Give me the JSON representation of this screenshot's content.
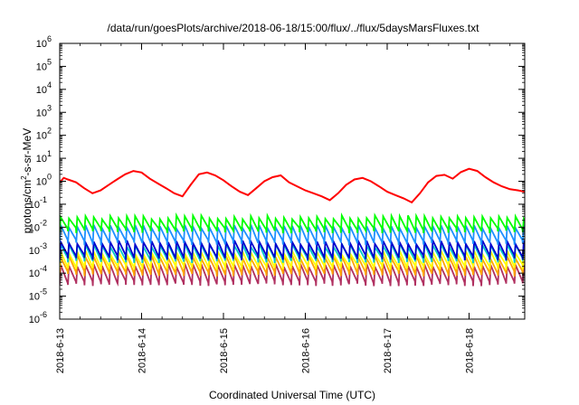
{
  "chart_data": {
    "type": "line",
    "title": "/data/run/goesPlots/archive/2018-06-18/15:00/flux/../flux/5daysMarsFluxes.txt",
    "xlabel": "Coordinated Universal Time (UTC)",
    "ylabel": "protons/cm²-s-sr-MeV",
    "ylabel_parts": {
      "pre": "protons/cm",
      "sup": "2",
      "post": "-s-sr-MeV"
    },
    "yscale": "log",
    "ylim_exp": [
      -6,
      6
    ],
    "y_tick_exponents": [
      6,
      5,
      4,
      3,
      2,
      1,
      0,
      -1,
      -2,
      -3,
      -4,
      -5,
      -6
    ],
    "x_range_days": [
      0,
      5.68
    ],
    "x_ticks": [
      {
        "label": "2018-6-13",
        "day": 0
      },
      {
        "label": "2018-6-14",
        "day": 1
      },
      {
        "label": "2018-6-15",
        "day": 2
      },
      {
        "label": "2018-6-16",
        "day": 3
      },
      {
        "label": "2018-6-17",
        "day": 4
      },
      {
        "label": "2018-6-18",
        "day": 5
      }
    ],
    "grid": false,
    "legend": "none",
    "series_colors": [
      "#ff0000",
      "#00ff00",
      "#1e90ff",
      "#0000cd",
      "#00c8c8",
      "#ffff00",
      "#ffa500",
      "#b03060"
    ],
    "series": [
      {
        "color": "#ff0000",
        "x": [
          0,
          0.05,
          0.1,
          0.2,
          0.3,
          0.4,
          0.5,
          0.6,
          0.7,
          0.8,
          0.9,
          1.0,
          1.1,
          1.2,
          1.3,
          1.4,
          1.5,
          1.6,
          1.7,
          1.8,
          1.9,
          2.0,
          2.1,
          2.2,
          2.3,
          2.4,
          2.5,
          2.6,
          2.7,
          2.8,
          2.9,
          3.0,
          3.1,
          3.2,
          3.3,
          3.4,
          3.5,
          3.6,
          3.7,
          3.8,
          3.9,
          4.0,
          4.1,
          4.2,
          4.3,
          4.4,
          4.5,
          4.6,
          4.7,
          4.8,
          4.9,
          5.0,
          5.1,
          5.2,
          5.3,
          5.4,
          5.5,
          5.6,
          5.68
        ],
        "y": [
          0.9,
          1.4,
          1.2,
          0.9,
          0.5,
          0.3,
          0.4,
          0.7,
          1.2,
          2.0,
          2.8,
          2.4,
          1.3,
          0.8,
          0.5,
          0.3,
          0.22,
          0.7,
          2.0,
          2.4,
          1.8,
          1.1,
          0.6,
          0.35,
          0.25,
          0.5,
          1.0,
          1.5,
          1.8,
          0.9,
          0.6,
          0.4,
          0.3,
          0.22,
          0.15,
          0.3,
          0.7,
          1.2,
          1.4,
          1.0,
          0.6,
          0.35,
          0.25,
          0.18,
          0.12,
          0.3,
          0.9,
          1.7,
          1.9,
          1.3,
          2.5,
          3.5,
          2.8,
          1.5,
          0.9,
          0.6,
          0.45,
          0.4,
          0.35
        ]
      },
      {
        "color": "#00ff00",
        "x": [
          0,
          5.68
        ],
        "y": [
          0.012,
          0.016
        ],
        "min": 0.006,
        "max": 0.035
      },
      {
        "color": "#1e90ff",
        "x": [
          0,
          5.68
        ],
        "y": [
          0.005,
          0.006
        ],
        "min": 0.0018,
        "max": 0.018
      },
      {
        "color": "#0000cd",
        "x": [
          0,
          5.68
        ],
        "y": [
          0.0016,
          0.002
        ],
        "min": 0.0004,
        "max": 0.0035
      },
      {
        "color": "#00c8c8",
        "x": [
          0,
          5.68
        ],
        "y": [
          0.0009,
          0.0011
        ],
        "min": 0.0003,
        "max": 0.0025
      },
      {
        "color": "#ffff00",
        "x": [
          0,
          5.68
        ],
        "y": [
          0.0005,
          0.0006
        ],
        "min": 0.00015,
        "max": 0.0012
      },
      {
        "color": "#ffa500",
        "x": [
          0,
          5.68
        ],
        "y": [
          0.0003,
          0.0004
        ],
        "min": 8e-05,
        "max": 0.0009
      },
      {
        "color": "#b03060",
        "x": [
          0,
          5.68
        ],
        "y": [
          0.00012,
          0.00015
        ],
        "min": 3e-05,
        "max": 0.0005
      }
    ]
  }
}
